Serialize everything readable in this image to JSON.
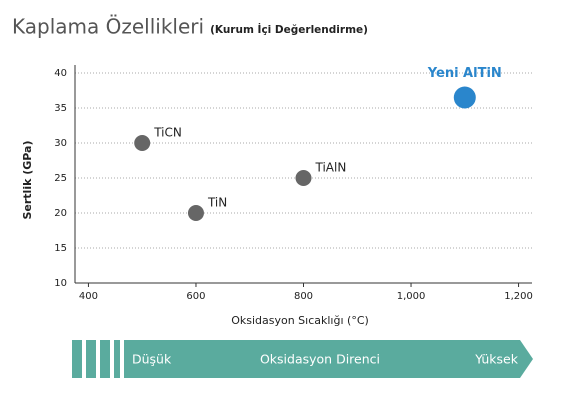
{
  "chart_data": {
    "type": "scatter",
    "title": "Kaplama Özellikleri",
    "subtitle": "(Kurum İçi Değerlendirme)",
    "x_label": "Oksidasyon Sıcaklığı (°C)",
    "y_label": "Sertlik (GPa)",
    "xlim": [
      375,
      1225
    ],
    "ylim": [
      10,
      40
    ],
    "xticks": [
      400,
      600,
      800,
      {
        "value": 1000,
        "label": "1,000"
      },
      {
        "value": 1200,
        "label": "1,200"
      }
    ],
    "yticks": [
      10,
      15,
      20,
      25,
      30,
      35,
      40
    ],
    "grid": true,
    "points": [
      {
        "label": "TiCN",
        "x": 500,
        "y": 30,
        "color": "#666666",
        "marker_size": 8
      },
      {
        "label": "TiN",
        "x": 600,
        "y": 20,
        "color": "#666666",
        "marker_size": 8
      },
      {
        "label": "TiAlN",
        "x": 800,
        "y": 25,
        "color": "#666666",
        "marker_size": 8
      },
      {
        "label": "Yeni AlTiN",
        "x": 1100,
        "y": 36.5,
        "color": "#2a86cc",
        "marker_size": 11
      }
    ],
    "scale_bar": {
      "low": "Düşük",
      "label": "Oksidasyon Direnci",
      "high": "Yüksek",
      "color": "#5aab9e"
    }
  }
}
